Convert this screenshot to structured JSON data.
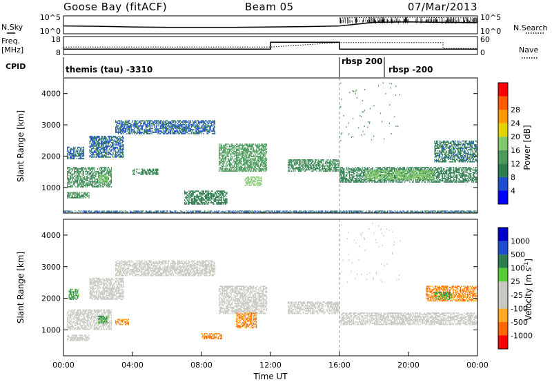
{
  "header": {
    "station": "Goose Bay (fitACF)",
    "beam": "Beam 05",
    "date": "07/Mar/2013"
  },
  "left_labels": {
    "nsky": "N.Sky",
    "freq": "Freq.",
    "freq_unit": "[MHz]",
    "cpid": "CPID"
  },
  "right_labels": {
    "nsearch": "N.Search",
    "nave": "Nave"
  },
  "colors": {
    "power": [
      "#0000ff",
      "#1f4fd0",
      "#2e7d4f",
      "#4a9a5a",
      "#7fc96a",
      "#e3d400",
      "#ff9900",
      "#ff5a00",
      "#ff0000"
    ],
    "velocity": [
      "#ff0000",
      "#ff6600",
      "#ffaa22",
      "#c8c8c0",
      "#c8c8c0",
      "#55cc33",
      "#2e7d4f",
      "#1f4fd0",
      "#0000cc"
    ],
    "ground_scatter": "#c8c8c0"
  },
  "chart_data": [
    {
      "type": "line",
      "name": "noise",
      "x_range": [
        0,
        24
      ],
      "series": [
        {
          "name": "N.Sky",
          "x": [
            0,
            2,
            4,
            6,
            8,
            10,
            12,
            14,
            16,
            18,
            20,
            22,
            24
          ],
          "y": [
            2.2,
            2.1,
            1.9,
            1.8,
            1.8,
            1.8,
            1.9,
            2.0,
            2.2,
            3.2,
            3.3,
            3.2,
            3.1
          ]
        },
        {
          "name": "N.Search",
          "x": [
            16,
            18,
            20,
            22,
            24
          ],
          "y": [
            4.4,
            4.6,
            4.6,
            4.5,
            4.4
          ]
        }
      ],
      "y_ticks_left": [
        "10^5",
        "10^0"
      ],
      "y_ticks_right": [
        "10^5",
        "10^0"
      ]
    },
    {
      "type": "line",
      "name": "frequency",
      "x_range": [
        0,
        24
      ],
      "series": [
        {
          "name": "Freq",
          "x": [
            0,
            12,
            12,
            16,
            16,
            24
          ],
          "y": [
            11,
            11,
            14.8,
            14.8,
            11,
            11
          ]
        },
        {
          "name": "Nave",
          "x": [
            0,
            12,
            16,
            22,
            22,
            24
          ],
          "y": [
            25,
            25,
            40,
            40,
            20,
            20
          ]
        }
      ],
      "y_ticks_left": [
        "18",
        "8"
      ],
      "y_ticks_right": [
        "60",
        "0"
      ]
    },
    {
      "type": "table",
      "name": "cpid",
      "segments": [
        {
          "start": 0,
          "end": 16,
          "label": "themis (tau) -3310"
        },
        {
          "start": 16,
          "end": 18.6,
          "label": "rbsp 200"
        },
        {
          "start": 18.6,
          "end": 24,
          "label": "rbsp -200"
        }
      ]
    },
    {
      "type": "heatmap",
      "name": "power",
      "ylabel": "Slant Range [km]",
      "ylim": [
        180,
        4500
      ],
      "yticks": [
        1000,
        2000,
        3000,
        4000
      ],
      "colorbar_label": "Power [dB]",
      "colorbar_ticks": [
        4,
        8,
        12,
        16,
        20,
        24,
        28
      ],
      "regions": [
        {
          "x0": 0.2,
          "x1": 2.8,
          "y0": 1000,
          "y1": 1650,
          "value": 10
        },
        {
          "x0": 0.2,
          "x1": 1.2,
          "y0": 1900,
          "y1": 2300,
          "value": 6
        },
        {
          "x0": 1.5,
          "x1": 3.5,
          "y0": 1950,
          "y1": 2650,
          "value": 6
        },
        {
          "x0": 3.0,
          "x1": 8.8,
          "y0": 2700,
          "y1": 3150,
          "value": 6
        },
        {
          "x0": 2.0,
          "x1": 2.6,
          "y0": 1150,
          "y1": 1400,
          "value": 16
        },
        {
          "x0": 0.2,
          "x1": 1.5,
          "y0": 650,
          "y1": 850,
          "value": 10
        },
        {
          "x0": 4.0,
          "x1": 5.5,
          "y0": 1400,
          "y1": 1600,
          "value": 9
        },
        {
          "x0": 9.0,
          "x1": 11.8,
          "y0": 1500,
          "y1": 2400,
          "value": 12
        },
        {
          "x0": 10.5,
          "x1": 11.5,
          "y0": 1050,
          "y1": 1350,
          "value": 16
        },
        {
          "x0": 7.0,
          "x1": 9.5,
          "y0": 450,
          "y1": 900,
          "value": 8
        },
        {
          "x0": 13.0,
          "x1": 16.0,
          "y0": 1500,
          "y1": 1900,
          "value": 10
        },
        {
          "x0": 16.0,
          "x1": 24.0,
          "y0": 1150,
          "y1": 1650,
          "value": 8
        },
        {
          "x0": 17.5,
          "x1": 21.5,
          "y0": 1250,
          "y1": 1550,
          "value": 16
        },
        {
          "x0": 21.5,
          "x1": 24.0,
          "y0": 1800,
          "y1": 2500,
          "value": 7
        },
        {
          "x0": 0.0,
          "x1": 24.0,
          "y0": 180,
          "y1": 260,
          "value": 6
        }
      ]
    },
    {
      "type": "heatmap",
      "name": "velocity",
      "xlabel": "Time UT",
      "ylabel": "Slant Range [km]",
      "ylim": [
        180,
        4500
      ],
      "yticks": [
        1000,
        2000,
        3000,
        4000
      ],
      "xticks": [
        "00:00",
        "04:00",
        "08:00",
        "12:00",
        "16:00",
        "20:00",
        "00:00"
      ],
      "colorbar_label": "Velocity [m s",
      "colorbar_label_sup": "-1",
      "colorbar_ticks": [
        "-1000",
        "-500",
        "-100",
        "-25",
        "25",
        "100",
        "500",
        "1000"
      ],
      "regions": [
        {
          "x0": 0.2,
          "x1": 2.8,
          "y0": 1000,
          "y1": 1650,
          "value": 0
        },
        {
          "x0": 1.5,
          "x1": 3.5,
          "y0": 1950,
          "y1": 2650,
          "value": 0
        },
        {
          "x0": 3.0,
          "x1": 8.8,
          "y0": 2700,
          "y1": 3200,
          "value": 0
        },
        {
          "x0": 0.2,
          "x1": 1.5,
          "y0": 650,
          "y1": 850,
          "value": 0
        },
        {
          "x0": 9.0,
          "x1": 11.8,
          "y0": 1500,
          "y1": 2400,
          "value": 0
        },
        {
          "x0": 13.0,
          "x1": 16.0,
          "y0": 1500,
          "y1": 1900,
          "value": 0
        },
        {
          "x0": 16.0,
          "x1": 24.0,
          "y0": 1150,
          "y1": 1550,
          "value": 0
        },
        {
          "x0": 2.0,
          "x1": 2.6,
          "y0": 1200,
          "y1": 1450,
          "value": 200
        },
        {
          "x0": 0.3,
          "x1": 0.9,
          "y0": 1950,
          "y1": 2300,
          "value": 200
        },
        {
          "x0": 3.0,
          "x1": 3.8,
          "y0": 1150,
          "y1": 1350,
          "value": -300
        },
        {
          "x0": 10.0,
          "x1": 11.2,
          "y0": 1050,
          "y1": 1550,
          "value": -300
        },
        {
          "x0": 8.0,
          "x1": 9.2,
          "y0": 700,
          "y1": 900,
          "value": -300
        },
        {
          "x0": 21.0,
          "x1": 24.0,
          "y0": 1900,
          "y1": 2400,
          "value": -300
        },
        {
          "x0": 21.5,
          "x1": 22.5,
          "y0": 1950,
          "y1": 2200,
          "value": 200
        }
      ]
    }
  ]
}
